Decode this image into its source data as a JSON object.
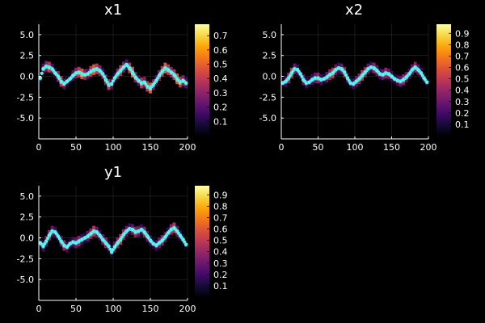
{
  "chart_data": [
    {
      "id": "x1",
      "type": "heatmap+scatter",
      "title": "x1",
      "xlim": [
        0,
        200
      ],
      "ylim": [
        -7.5,
        6.25
      ],
      "xticks": [
        0,
        50,
        100,
        150,
        200
      ],
      "xticklabels": [
        "0",
        "50",
        "100",
        "150",
        "200"
      ],
      "yticks": [
        5.0,
        2.5,
        0.0,
        -2.5,
        -5.0
      ],
      "yticklabels": [
        "5.0",
        "2.5",
        "0.0",
        "-2.5",
        "-5.0"
      ],
      "grid": true,
      "colorbar": {
        "range": [
          0.0,
          0.78
        ],
        "ticks": [
          0.1,
          0.2,
          0.3,
          0.4,
          0.5,
          0.6,
          0.7
        ],
        "ticklabels": [
          "0.1",
          "0.2",
          "0.3",
          "0.4",
          "0.5",
          "0.6",
          "0.7"
        ],
        "colormap": "inferno"
      },
      "curve_x": [
        2,
        6,
        10,
        14,
        18,
        22,
        26,
        30,
        34,
        38,
        42,
        46,
        50,
        54,
        58,
        62,
        66,
        70,
        74,
        78,
        82,
        86,
        90,
        94,
        98,
        102,
        106,
        110,
        114,
        118,
        122,
        126,
        130,
        134,
        138,
        142,
        146,
        150,
        154,
        158,
        162,
        166,
        170,
        174,
        178,
        182,
        186,
        190,
        194,
        198
      ],
      "curve_y": [
        -0.2,
        0.9,
        1.2,
        1.1,
        0.9,
        0.4,
        0.0,
        -0.6,
        -0.9,
        -0.6,
        -0.3,
        0.1,
        0.4,
        0.5,
        0.3,
        0.2,
        0.3,
        0.6,
        0.8,
        0.9,
        0.7,
        0.3,
        -0.4,
        -1.0,
        -0.9,
        -0.2,
        0.3,
        0.7,
        1.1,
        1.4,
        1.0,
        0.5,
        -0.1,
        -0.5,
        -0.8,
        -0.7,
        -1.2,
        -1.4,
        -1.0,
        -0.5,
        0.1,
        0.6,
        1.0,
        0.8,
        0.5,
        0.2,
        -0.3,
        -0.7,
        -0.5,
        -0.8
      ],
      "heat_intensity": [
        0.3,
        0.5,
        0.6,
        0.7,
        0.5,
        0.4,
        0.6,
        0.7,
        0.5,
        0.4,
        0.3,
        0.5,
        0.6,
        0.7,
        0.8,
        0.6,
        0.5,
        0.7,
        0.8,
        0.7,
        0.6,
        0.5,
        0.6,
        0.7,
        0.5,
        0.4,
        0.6,
        0.7,
        0.6,
        0.5,
        0.7,
        0.8,
        0.6,
        0.5,
        0.7,
        0.6,
        0.7,
        0.8,
        0.6,
        0.5,
        0.6,
        0.7,
        0.8,
        0.7,
        0.6,
        0.7,
        0.8,
        0.7,
        0.6,
        0.5
      ]
    },
    {
      "id": "x2",
      "type": "heatmap+scatter",
      "title": "x2",
      "xlim": [
        0,
        200
      ],
      "ylim": [
        -7.5,
        6.25
      ],
      "xticks": [
        0,
        50,
        100,
        150,
        200
      ],
      "xticklabels": [
        "0",
        "50",
        "100",
        "150",
        "200"
      ],
      "yticks": [
        5.0,
        2.5,
        0.0,
        -2.5,
        -5.0
      ],
      "yticklabels": [
        "5.0",
        "2.5",
        "0.0",
        "-2.5",
        "-5.0"
      ],
      "grid": true,
      "colorbar": {
        "range": [
          0.0,
          0.98
        ],
        "ticks": [
          0.1,
          0.2,
          0.3,
          0.4,
          0.5,
          0.6,
          0.7,
          0.8,
          0.9
        ],
        "ticklabels": [
          "0.1",
          "0.2",
          "0.3",
          "0.4",
          "0.5",
          "0.6",
          "0.7",
          "0.8",
          "0.9"
        ],
        "colormap": "inferno"
      },
      "curve_x": [
        2,
        6,
        10,
        14,
        18,
        22,
        26,
        30,
        34,
        38,
        42,
        46,
        50,
        54,
        58,
        62,
        66,
        70,
        74,
        78,
        82,
        86,
        90,
        94,
        98,
        102,
        106,
        110,
        114,
        118,
        122,
        126,
        130,
        134,
        138,
        142,
        146,
        150,
        154,
        158,
        162,
        166,
        170,
        174,
        178,
        182,
        186,
        190,
        194,
        198
      ],
      "curve_y": [
        -0.8,
        -0.6,
        -0.2,
        0.4,
        0.9,
        0.8,
        0.3,
        -0.4,
        -0.8,
        -0.7,
        -0.4,
        -0.2,
        -0.2,
        -0.4,
        -0.3,
        -0.1,
        0.2,
        0.4,
        0.8,
        1.0,
        0.9,
        0.5,
        -0.2,
        -0.8,
        -0.9,
        -0.6,
        -0.3,
        0.1,
        0.5,
        0.9,
        1.1,
        1.0,
        0.7,
        0.3,
        0.2,
        0.4,
        0.3,
        0.0,
        -0.3,
        -0.5,
        -0.6,
        -0.4,
        -0.1,
        0.3,
        0.8,
        1.1,
        0.8,
        0.4,
        -0.2,
        -0.7
      ],
      "heat_intensity": [
        0.3,
        0.5,
        0.7,
        0.8,
        0.6,
        0.5,
        0.4,
        0.6,
        0.5,
        0.4,
        0.5,
        0.6,
        0.7,
        0.5,
        0.4,
        0.6,
        0.7,
        0.8,
        0.6,
        0.5,
        0.6,
        0.7,
        0.5,
        0.4,
        0.5,
        0.6,
        0.7,
        0.8,
        0.7,
        0.6,
        0.5,
        0.7,
        0.6,
        0.5,
        0.6,
        0.7,
        0.6,
        0.5,
        0.4,
        0.5,
        0.6,
        0.7,
        0.6,
        0.5,
        0.6,
        0.7,
        0.6,
        0.5,
        0.4,
        0.3
      ]
    },
    {
      "id": "y1",
      "type": "heatmap+scatter",
      "title": "y1",
      "xlim": [
        0,
        200
      ],
      "ylim": [
        -7.5,
        6.25
      ],
      "xticks": [
        0,
        50,
        100,
        150,
        200
      ],
      "xticklabels": [
        "0",
        "50",
        "100",
        "150",
        "200"
      ],
      "yticks": [
        5.0,
        2.5,
        0.0,
        -2.5,
        -5.0
      ],
      "yticklabels": [
        "5.0",
        "2.5",
        "0.0",
        "-2.5",
        "-5.0"
      ],
      "grid": true,
      "colorbar": {
        "range": [
          0.0,
          0.98
        ],
        "ticks": [
          0.1,
          0.2,
          0.3,
          0.4,
          0.5,
          0.6,
          0.7,
          0.8,
          0.9
        ],
        "ticklabels": [
          "0.1",
          "0.2",
          "0.3",
          "0.4",
          "0.5",
          "0.6",
          "0.7",
          "0.8",
          "0.9"
        ],
        "colormap": "inferno"
      },
      "curve_x": [
        2,
        6,
        10,
        14,
        18,
        22,
        26,
        30,
        34,
        38,
        42,
        46,
        50,
        54,
        58,
        62,
        66,
        70,
        74,
        78,
        82,
        86,
        90,
        94,
        98,
        102,
        106,
        110,
        114,
        118,
        122,
        126,
        130,
        134,
        138,
        142,
        146,
        150,
        154,
        158,
        162,
        166,
        170,
        174,
        178,
        182,
        186,
        190,
        194,
        198
      ],
      "curve_y": [
        -0.6,
        -1.0,
        -0.4,
        0.3,
        0.8,
        0.7,
        0.2,
        -0.4,
        -0.9,
        -1.1,
        -0.7,
        -0.5,
        -0.6,
        -0.4,
        -0.2,
        0.0,
        0.2,
        0.5,
        0.8,
        0.7,
        0.3,
        -0.2,
        -0.6,
        -1.0,
        -1.7,
        -1.1,
        -0.6,
        -0.2,
        0.4,
        0.8,
        1.1,
        1.0,
        0.7,
        0.8,
        1.0,
        0.7,
        0.2,
        -0.3,
        -0.7,
        -0.9,
        -0.6,
        -0.3,
        0.1,
        0.6,
        1.0,
        1.2,
        0.8,
        0.3,
        -0.2,
        -0.8
      ],
      "heat_intensity": [
        0.4,
        0.5,
        0.6,
        0.7,
        0.6,
        0.5,
        0.4,
        0.6,
        0.7,
        0.5,
        0.4,
        0.5,
        0.6,
        0.7,
        0.5,
        0.4,
        0.6,
        0.7,
        0.8,
        0.6,
        0.5,
        0.6,
        0.7,
        0.5,
        0.4,
        0.6,
        0.7,
        0.8,
        0.7,
        0.6,
        0.5,
        0.6,
        0.7,
        0.6,
        0.5,
        0.7,
        0.6,
        0.5,
        0.4,
        0.5,
        0.6,
        0.7,
        0.6,
        0.5,
        0.7,
        0.8,
        0.6,
        0.5,
        0.4,
        0.3
      ]
    }
  ],
  "colors": {
    "background": "#000000",
    "marker": "#5ff5ef",
    "axis": "#ffffff",
    "grid": "#2a2a2a"
  }
}
